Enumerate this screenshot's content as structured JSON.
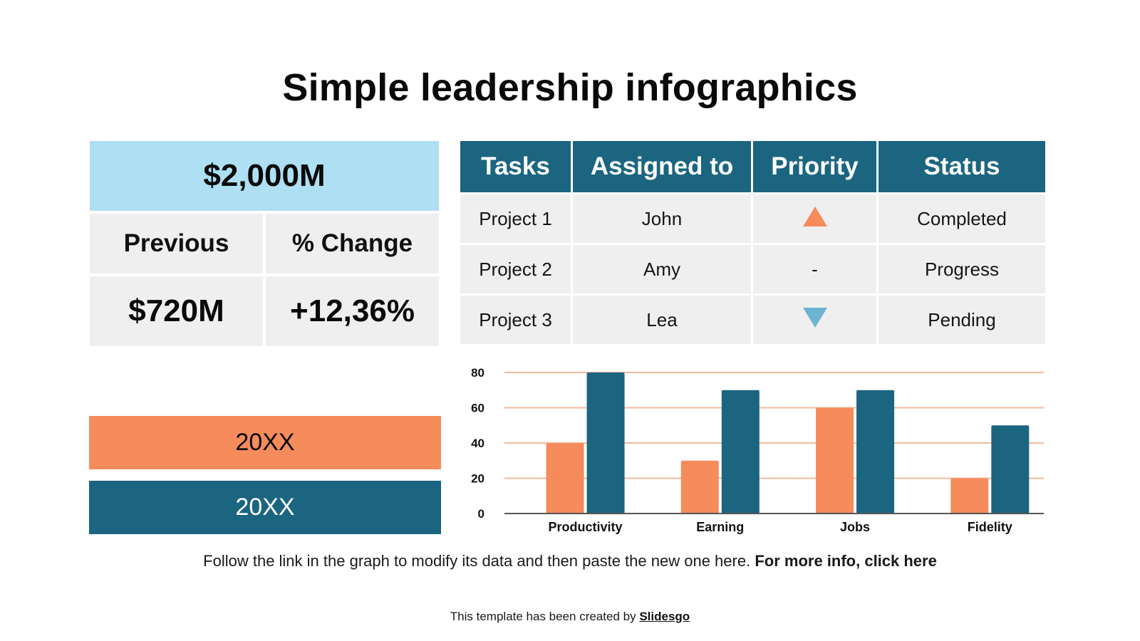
{
  "title": "Simple leadership infographics",
  "kpi": {
    "total": "$2,000M",
    "labels": [
      "Previous",
      "% Change"
    ],
    "values": [
      "$720M",
      "+12,36%"
    ]
  },
  "years": [
    "20XX",
    "20XX"
  ],
  "tasks_table": {
    "headers": [
      "Tasks",
      "Assigned to",
      "Priority",
      "Status"
    ],
    "rows": [
      {
        "task": "Project 1",
        "assigned": "John",
        "priority": "up-triangle-icon",
        "priority_text": "",
        "status": "Completed"
      },
      {
        "task": "Project 2",
        "assigned": "Amy",
        "priority": "none",
        "priority_text": "-",
        "status": "Progress"
      },
      {
        "task": "Project 3",
        "assigned": "Lea",
        "priority": "down-triangle-icon",
        "priority_text": "",
        "status": "Pending"
      }
    ]
  },
  "colors": {
    "orange": "#f68b5c",
    "teal": "#1b6580",
    "light_blue": "#aedff3",
    "cell_gray": "#efefef",
    "down_arrow": "#6cb4d1"
  },
  "chart_data": {
    "type": "bar",
    "title": "",
    "xlabel": "",
    "ylabel": "",
    "categories": [
      "Productivity",
      "Earning",
      "Jobs",
      "Fidelity"
    ],
    "series": [
      {
        "name": "20XX (orange)",
        "color": "#f68b5c",
        "values": [
          40,
          30,
          60,
          20
        ]
      },
      {
        "name": "20XX (teal)",
        "color": "#1b6580",
        "values": [
          80,
          70,
          70,
          50
        ]
      }
    ],
    "yticks": [
      0,
      20,
      40,
      60,
      80
    ],
    "ylim": [
      0,
      80
    ],
    "grid": true,
    "legend": "none"
  },
  "footer": {
    "note": "Follow the link in the graph to modify its data and then paste the new one here.",
    "note_link": "For more info, click here",
    "credit": "This template has been created by",
    "credit_link": "Slidesgo"
  }
}
